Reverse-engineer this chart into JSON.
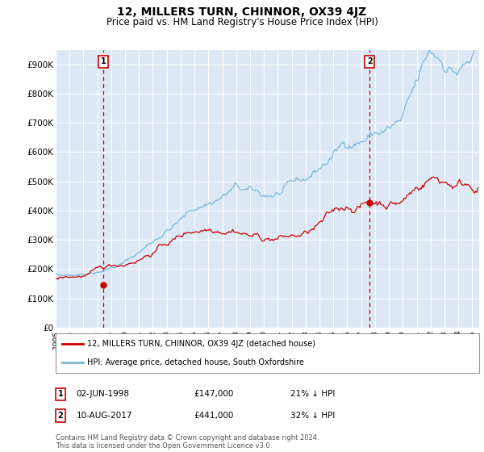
{
  "title": "12, MILLERS TURN, CHINNOR, OX39 4JZ",
  "subtitle": "Price paid vs. HM Land Registry's House Price Index (HPI)",
  "title_fontsize": 10,
  "subtitle_fontsize": 8.5,
  "background_color": "#ffffff",
  "plot_bg_color": "#dce9f5",
  "grid_color": "#ffffff",
  "ylim": [
    0,
    950000
  ],
  "yticks": [
    0,
    100000,
    200000,
    300000,
    400000,
    500000,
    600000,
    700000,
    800000,
    900000
  ],
  "ytick_labels": [
    "£0",
    "£100K",
    "£200K",
    "£300K",
    "£400K",
    "£500K",
    "£600K",
    "£700K",
    "£800K",
    "£900K"
  ],
  "hpi_color": "#7db8d8",
  "price_color": "#cc0000",
  "marker1_x": 1998.42,
  "marker2_x": 2017.61,
  "marker1_price": 147000,
  "marker2_price": 441000,
  "marker1_label": "1",
  "marker2_label": "2",
  "legend_entry1": "12, MILLERS TURN, CHINNOR, OX39 4JZ (detached house)",
  "legend_entry2": "HPI: Average price, detached house, South Oxfordshire",
  "annotation1_date": "02-JUN-1998",
  "annotation1_price": "£147,000",
  "annotation1_hpi": "21% ↓ HPI",
  "annotation2_date": "10-AUG-2017",
  "annotation2_price": "£441,000",
  "annotation2_hpi": "32% ↓ HPI",
  "footer": "Contains HM Land Registry data © Crown copyright and database right 2024.\nThis data is licensed under the Open Government Licence v3.0.",
  "xlim_start": 1995.0,
  "xlim_end": 2025.5
}
